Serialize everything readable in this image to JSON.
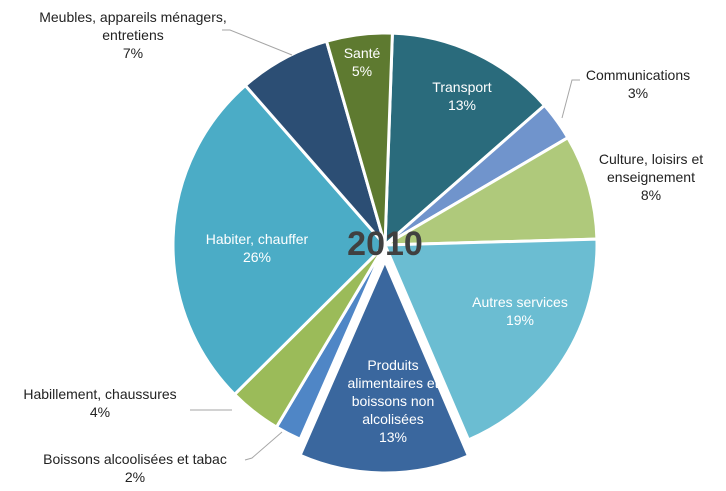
{
  "chart_data": {
    "type": "pie",
    "title": "2010",
    "categories": [
      "Transport",
      "Communications",
      "Culture, loisirs et enseignement",
      "Autres services",
      "Produits alimentaires et boissons non alcolisées",
      "Boissons alcoolisées et tabac",
      "Habillement, chaussures",
      "Habiter, chauffer",
      "Meubles, appareils ménagers, entretiens",
      "Santé"
    ],
    "values": [
      13,
      3,
      8,
      19,
      13,
      2,
      4,
      26,
      7,
      5
    ],
    "value_labels": [
      "13%",
      "3%",
      "8%",
      "19%",
      "13%",
      "2%",
      "4%",
      "26%",
      "7%",
      "5%"
    ],
    "colors": [
      "#2a6b7c",
      "#7094cc",
      "#afc97b",
      "#6bbdd2",
      "#3a679e",
      "#4f86c6",
      "#9bbb59",
      "#4bacc6",
      "#2c4e74",
      "#5e7a30"
    ]
  }
}
